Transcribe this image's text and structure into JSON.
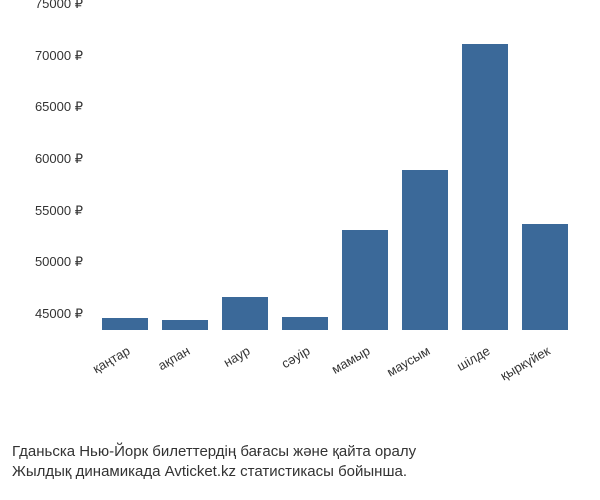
{
  "chart": {
    "type": "bar",
    "categories": [
      "қаңтар",
      "ақпан",
      "наур",
      "сәуір",
      "мамыр",
      "маусым",
      "шілде",
      "қыркүйек"
    ],
    "values": [
      46200,
      46000,
      48200,
      46300,
      54700,
      60500,
      72700,
      55300
    ],
    "bar_color": "#3b6999",
    "ymin": 45000,
    "ymax": 75000,
    "ytick_step": 5000,
    "yticks": [
      45000,
      50000,
      55000,
      60000,
      65000,
      70000,
      75000
    ],
    "ytick_labels": [
      "45000 ₽",
      "50000 ₽",
      "55000 ₽",
      "60000 ₽",
      "65000 ₽",
      "70000 ₽",
      "75000 ₽"
    ],
    "currency_symbol": "₽",
    "background_color": "#ffffff",
    "tick_font_color": "#333333",
    "tick_font_size": 13,
    "x_label_rotation_deg": -30,
    "bar_width_ratio": 0.78
  },
  "caption": {
    "line1": "Гданьска Нью-Йорк билеттердің бағасы және қайта оралу",
    "line2": "Жылдық динамикада Avticket.kz статистикасы бойынша."
  }
}
